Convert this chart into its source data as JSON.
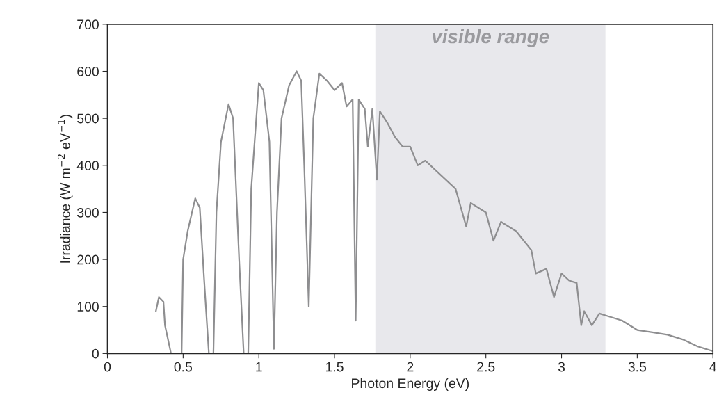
{
  "chart_data": {
    "type": "line",
    "xlabel": "Photon Energy (eV)",
    "ylabel": "Irradiance (W m$^{−2}$ eV$^{−1}$)",
    "x": [
      0.32,
      0.34,
      0.37,
      0.38,
      0.4,
      0.42,
      0.49,
      0.5,
      0.53,
      0.58,
      0.61,
      0.64,
      0.67,
      0.7,
      0.72,
      0.75,
      0.8,
      0.83,
      0.87,
      0.9,
      0.93,
      0.95,
      1.0,
      1.03,
      1.07,
      1.1,
      1.12,
      1.15,
      1.2,
      1.25,
      1.28,
      1.3,
      1.33,
      1.36,
      1.4,
      1.45,
      1.5,
      1.55,
      1.58,
      1.62,
      1.64,
      1.66,
      1.7,
      1.72,
      1.75,
      1.78,
      1.8,
      1.85,
      1.9,
      1.95,
      2.0,
      2.05,
      2.1,
      2.2,
      2.3,
      2.37,
      2.4,
      2.5,
      2.55,
      2.6,
      2.7,
      2.8,
      2.83,
      2.9,
      2.95,
      3.0,
      3.05,
      3.1,
      3.13,
      3.15,
      3.2,
      3.25,
      3.3,
      3.4,
      3.5,
      3.6,
      3.7,
      3.8,
      3.9,
      4.0
    ],
    "series": [
      {
        "color": "#8e8e90",
        "values": [
          90,
          120,
          110,
          60,
          30,
          0,
          0,
          200,
          260,
          330,
          310,
          150,
          0,
          0,
          300,
          450,
          530,
          500,
          200,
          0,
          0,
          350,
          575,
          560,
          450,
          10,
          300,
          500,
          570,
          600,
          580,
          400,
          100,
          500,
          595,
          580,
          560,
          575,
          525,
          540,
          70,
          540,
          520,
          440,
          520,
          370,
          515,
          490,
          460,
          440,
          440,
          400,
          410,
          380,
          350,
          270,
          320,
          300,
          240,
          280,
          260,
          220,
          170,
          180,
          120,
          170,
          155,
          150,
          60,
          90,
          60,
          85,
          80,
          70,
          50,
          45,
          40,
          30,
          15,
          5
        ]
      }
    ],
    "xlim": [
      0,
      4
    ],
    "ylim": [
      0,
      700
    ],
    "xticks": [
      0,
      0.5,
      1,
      1.5,
      2,
      2.5,
      3,
      3.5,
      4
    ],
    "yticks": [
      0,
      100,
      200,
      300,
      400,
      500,
      600,
      700
    ],
    "bands": [
      {
        "axis": "x",
        "from": 1.77,
        "to": 3.29,
        "label": "visible range",
        "color": "#e8e8ec"
      }
    ],
    "grid": false,
    "legend": false
  }
}
